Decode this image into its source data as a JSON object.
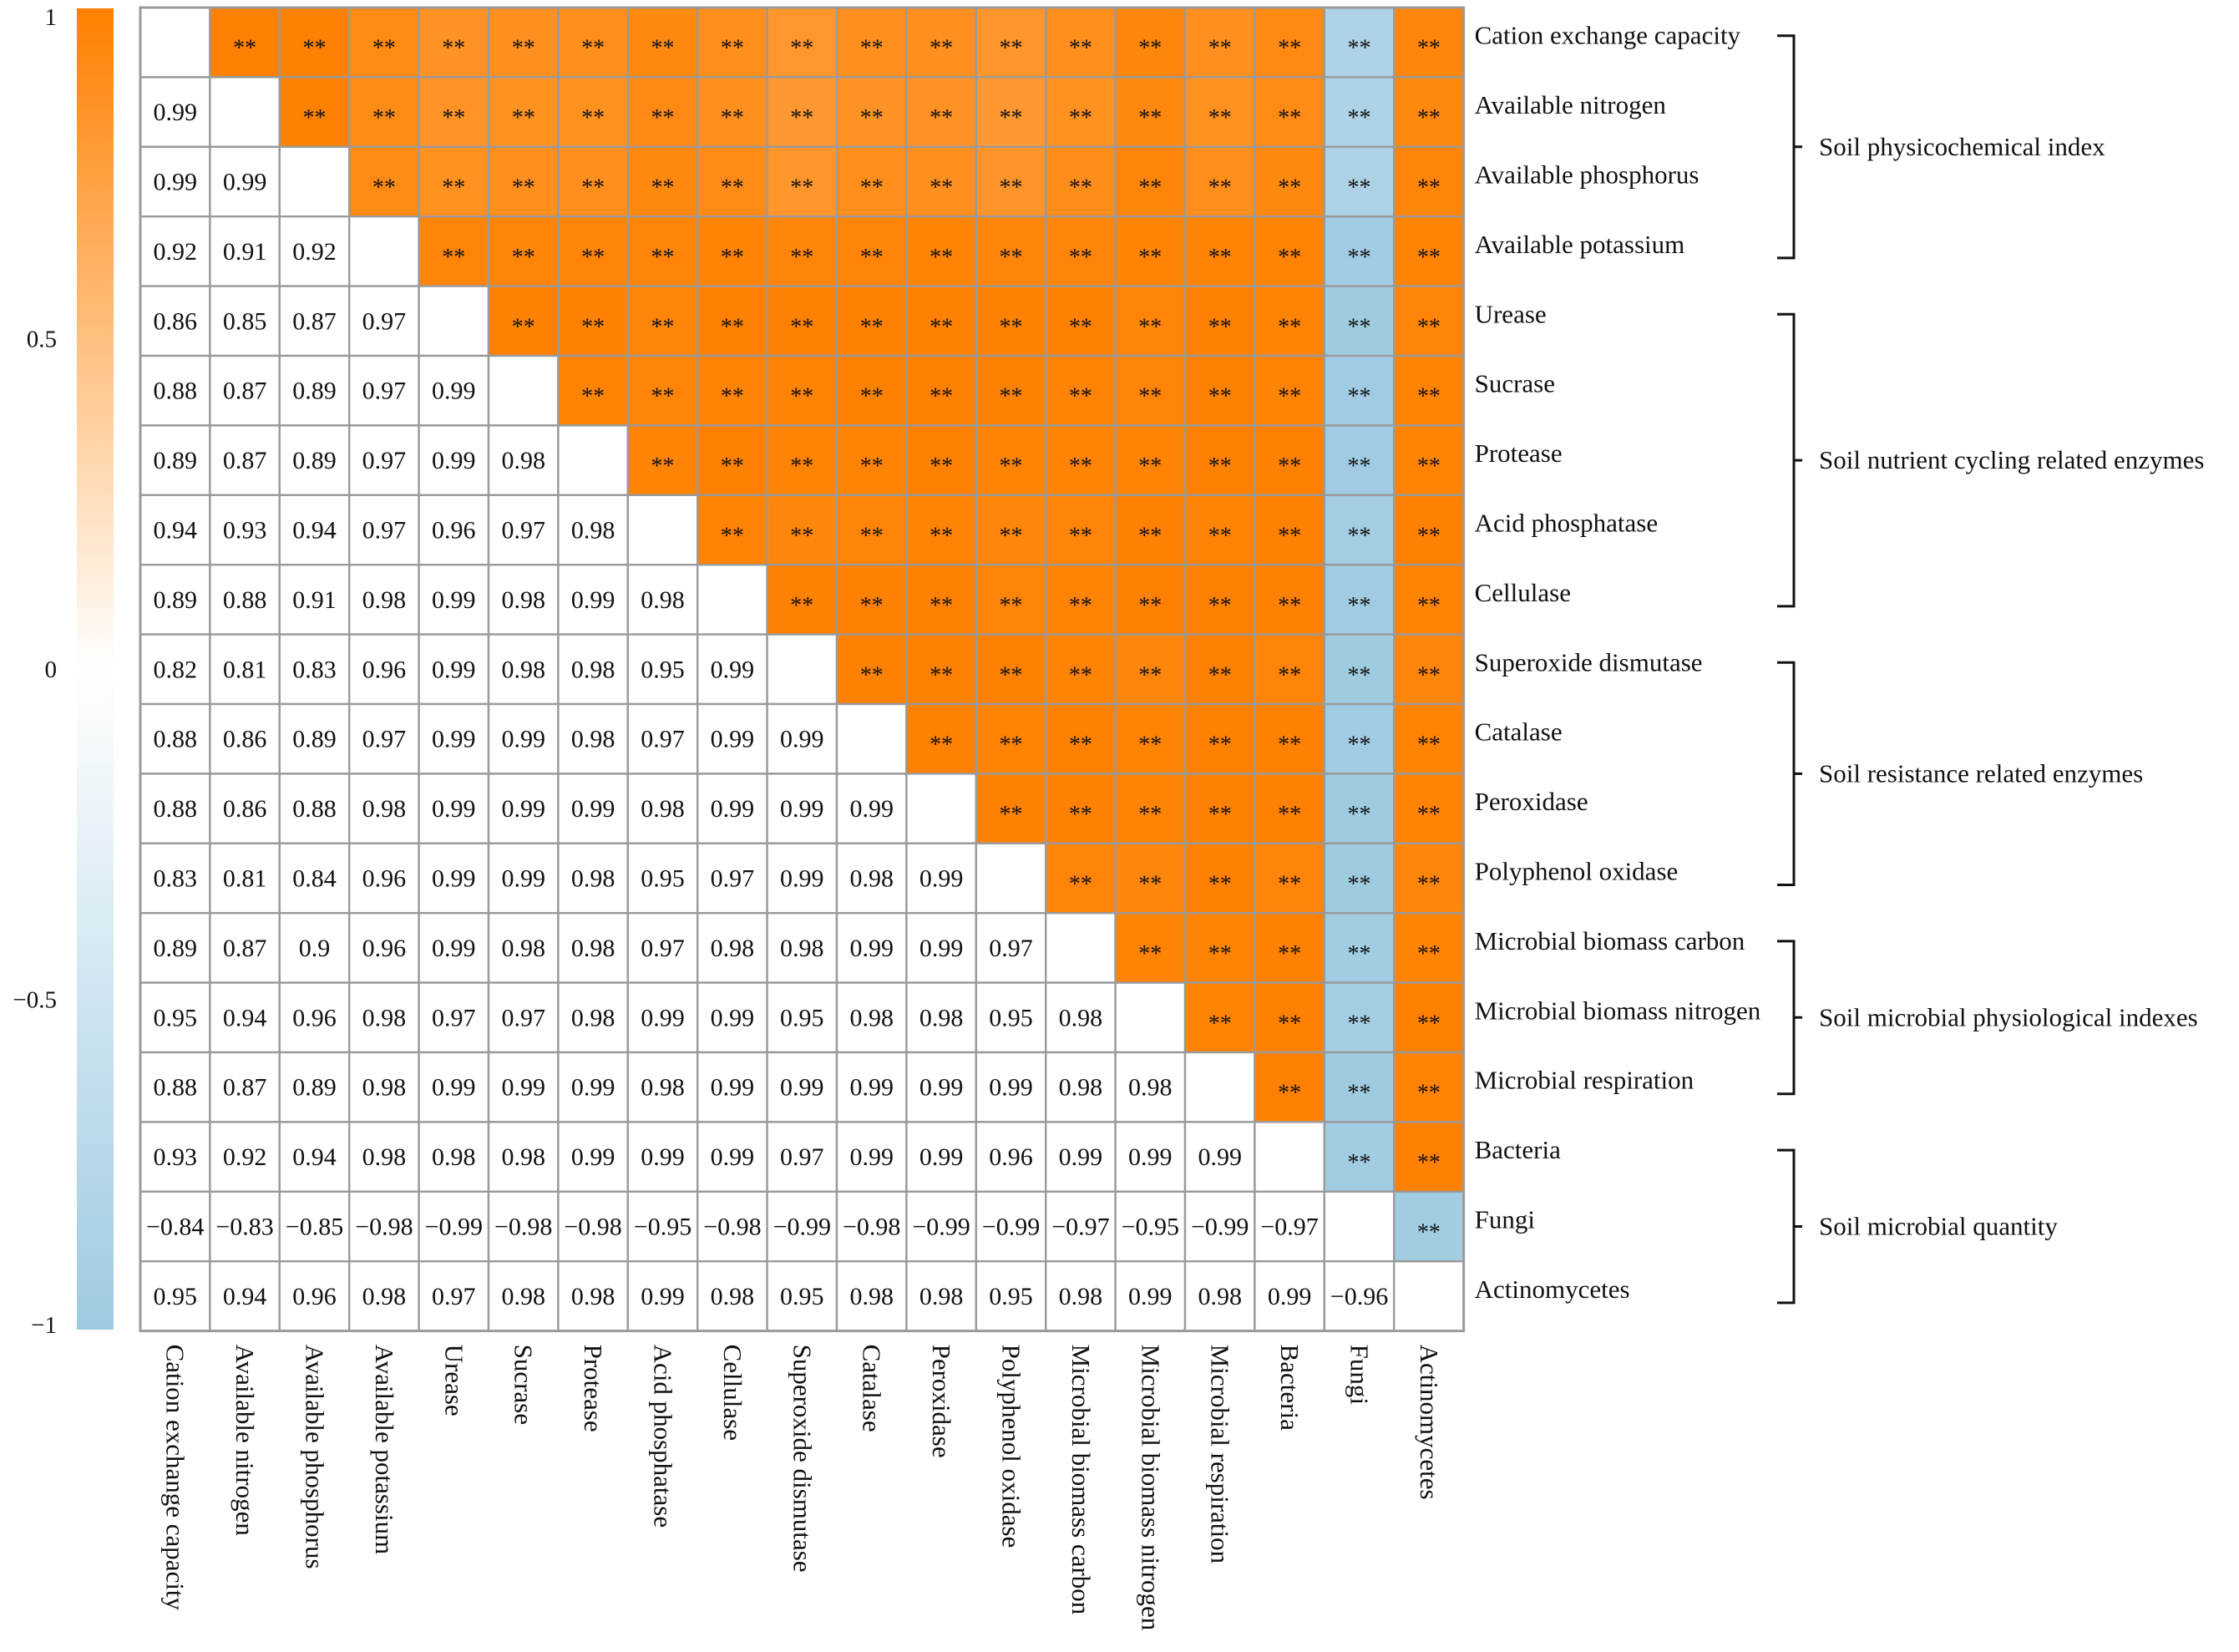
{
  "chart_data": {
    "type": "heatmap",
    "title": "",
    "variables": [
      "Cation exchange capacity",
      "Available nitrogen",
      "Available phosphorus",
      "Available potassium",
      "Urease",
      "Sucrase",
      "Protease",
      "Acid phosphatase",
      "Cellulase",
      "Superoxide dismutase",
      "Catalase",
      "Peroxidase",
      "Polyphenol oxidase",
      "Microbial biomass carbon",
      "Microbial biomass nitrogen",
      "Microbial respiration",
      "Bacteria",
      "Fungi",
      "Actinomycetes"
    ],
    "lower_values": [
      [],
      [
        "0.99"
      ],
      [
        "0.99",
        "0.99"
      ],
      [
        "0.92",
        "0.91",
        "0.92"
      ],
      [
        "0.86",
        "0.85",
        "0.87",
        "0.97"
      ],
      [
        "0.88",
        "0.87",
        "0.89",
        "0.97",
        "0.99"
      ],
      [
        "0.89",
        "0.87",
        "0.89",
        "0.97",
        "0.99",
        "0.98"
      ],
      [
        "0.94",
        "0.93",
        "0.94",
        "0.97",
        "0.96",
        "0.97",
        "0.98"
      ],
      [
        "0.89",
        "0.88",
        "0.91",
        "0.98",
        "0.99",
        "0.98",
        "0.99",
        "0.98"
      ],
      [
        "0.82",
        "0.81",
        "0.83",
        "0.96",
        "0.99",
        "0.98",
        "0.98",
        "0.95",
        "0.99"
      ],
      [
        "0.88",
        "0.86",
        "0.89",
        "0.97",
        "0.99",
        "0.99",
        "0.98",
        "0.97",
        "0.99",
        "0.99"
      ],
      [
        "0.88",
        "0.86",
        "0.88",
        "0.98",
        "0.99",
        "0.99",
        "0.99",
        "0.98",
        "0.99",
        "0.99",
        "0.99"
      ],
      [
        "0.83",
        "0.81",
        "0.84",
        "0.96",
        "0.99",
        "0.99",
        "0.98",
        "0.95",
        "0.97",
        "0.99",
        "0.98",
        "0.99"
      ],
      [
        "0.89",
        "0.87",
        "0.9",
        "0.96",
        "0.99",
        "0.98",
        "0.98",
        "0.97",
        "0.98",
        "0.98",
        "0.99",
        "0.99",
        "0.97"
      ],
      [
        "0.95",
        "0.94",
        "0.96",
        "0.98",
        "0.97",
        "0.97",
        "0.98",
        "0.99",
        "0.99",
        "0.95",
        "0.98",
        "0.98",
        "0.95",
        "0.98"
      ],
      [
        "0.88",
        "0.87",
        "0.89",
        "0.98",
        "0.99",
        "0.99",
        "0.99",
        "0.98",
        "0.99",
        "0.99",
        "0.99",
        "0.99",
        "0.99",
        "0.98",
        "0.98"
      ],
      [
        "0.93",
        "0.92",
        "0.94",
        "0.98",
        "0.98",
        "0.98",
        "0.99",
        "0.99",
        "0.99",
        "0.97",
        "0.99",
        "0.99",
        "0.96",
        "0.99",
        "0.99",
        "0.99"
      ],
      [
        "−0.84",
        "−0.83",
        "−0.85",
        "−0.98",
        "−0.99",
        "−0.98",
        "−0.98",
        "−0.95",
        "−0.98",
        "−0.99",
        "−0.98",
        "−0.99",
        "−0.99",
        "−0.97",
        "−0.95",
        "−0.99",
        "−0.97"
      ],
      [
        "0.95",
        "0.94",
        "0.96",
        "0.98",
        "0.97",
        "0.98",
        "0.98",
        "0.99",
        "0.98",
        "0.95",
        "0.98",
        "0.98",
        "0.95",
        "0.98",
        "0.99",
        "0.98",
        "0.99",
        "−0.96"
      ]
    ],
    "significance_marker": "**",
    "colorbar": {
      "range": [
        -1,
        1
      ],
      "ticks": [
        {
          "value": 1,
          "label": "1"
        },
        {
          "value": 0.5,
          "label": "0.5"
        },
        {
          "value": 0,
          "label": "0"
        },
        {
          "value": -0.5,
          "label": "−0.5"
        },
        {
          "value": -1,
          "label": "−1"
        }
      ],
      "color_high": "#ff8000",
      "color_mid": "#ffffff",
      "color_low": "#9ecae1"
    },
    "groups": [
      {
        "label": "Soil physicochemical index",
        "from": 0,
        "to": 3
      },
      {
        "label": "Soil nutrient cycling related enzymes",
        "from": 4,
        "to": 8
      },
      {
        "label": "Soil resistance related enzymes",
        "from": 9,
        "to": 12
      },
      {
        "label": "Soil microbial physiological indexes",
        "from": 13,
        "to": 15
      },
      {
        "label": "Soil microbial quantity",
        "from": 16,
        "to": 18
      }
    ],
    "grid_color": "#9a9a9a"
  }
}
